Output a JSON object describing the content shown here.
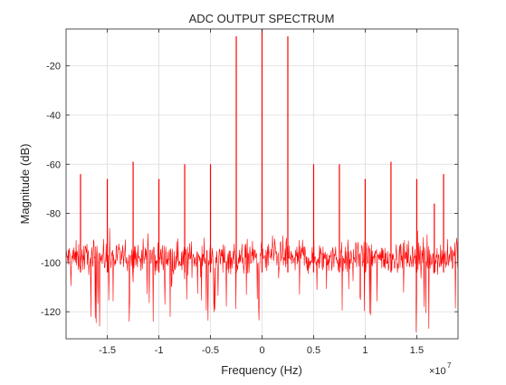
{
  "chart_data": {
    "type": "line",
    "title": "ADC OUTPUT SPECTRUM",
    "xlabel": "Frequency (Hz)",
    "ylabel": "Magnitude (dB)",
    "x_exponent_label": "×10",
    "x_exponent_power": "7",
    "xlim": [
      -19000000.0,
      19000000.0
    ],
    "ylim": [
      -131,
      -5
    ],
    "x_tick_values": [
      -15000000,
      -10000000,
      -5000000,
      0,
      5000000,
      10000000,
      15000000
    ],
    "x_tick_labels": [
      "-1.5",
      "-1",
      "-0.5",
      "0",
      "0.5",
      "1",
      "1.5"
    ],
    "y_tick_values": [
      -120,
      -100,
      -80,
      -60,
      -40,
      -20
    ],
    "y_tick_labels": [
      "-120",
      "-100",
      "-80",
      "-60",
      "-40",
      "-20"
    ],
    "grid": true,
    "noise_floor_db": -98,
    "series": [
      {
        "color": "#ff0000",
        "spurs": [
          {
            "x": -17600000,
            "y": -64
          },
          {
            "x": -15000000,
            "y": -66
          },
          {
            "x": -12500000,
            "y": -59
          },
          {
            "x": -10000000,
            "y": -66
          },
          {
            "x": -7500000,
            "y": -60
          },
          {
            "x": -5000000,
            "y": -60
          },
          {
            "x": -2500000,
            "y": -8
          },
          {
            "x": 0,
            "y": -3
          },
          {
            "x": 2500000,
            "y": -8
          },
          {
            "x": 5000000,
            "y": -60
          },
          {
            "x": 7500000,
            "y": -60
          },
          {
            "x": 10000000,
            "y": -66
          },
          {
            "x": 12500000,
            "y": -59
          },
          {
            "x": 15000000,
            "y": -66
          },
          {
            "x": 16700000,
            "y": -76
          },
          {
            "x": 17600000,
            "y": -64
          }
        ]
      }
    ]
  }
}
